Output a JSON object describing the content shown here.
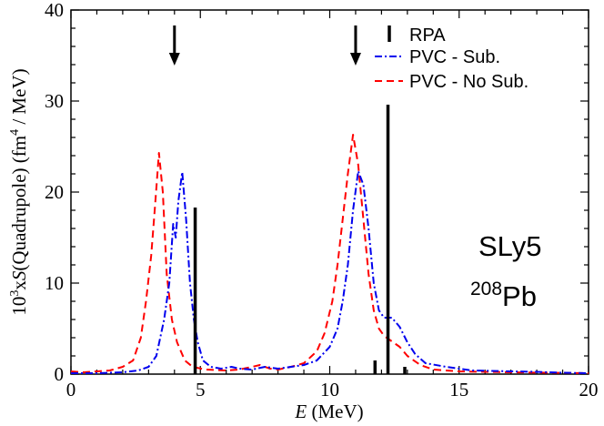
{
  "chart_data": {
    "type": "line",
    "title": "",
    "xlabel_italic": "E",
    "xlabel_unit": " (MeV)",
    "ylabel": {
      "prefix": "10",
      "exp3": "3",
      "mid": "x",
      "italic": "S",
      "rest": "(Quadrupole) (fm",
      "exp4": "4",
      "tail": " / MeV)"
    },
    "xlim": [
      0,
      20
    ],
    "ylim": [
      0,
      40
    ],
    "x_ticks": [
      0,
      5,
      10,
      15,
      20
    ],
    "y_ticks": [
      0,
      10,
      20,
      30,
      40
    ],
    "x_tick_labels": [
      "0",
      "5",
      "10",
      "15",
      "20"
    ],
    "y_tick_labels": [
      "0",
      "10",
      "20",
      "30",
      "40"
    ],
    "x_minor_step": 1,
    "y_minor_step": 2,
    "grid": false,
    "legend_position": "top-right",
    "annotations": {
      "interaction": "SLy5",
      "nucleus_mass": "208",
      "nucleus_symbol": "Pb"
    },
    "arrows_at_x": [
      4.0,
      11.0
    ],
    "rpa": {
      "name": "RPA",
      "color": "#000000",
      "bars": [
        {
          "x": 4.8,
          "y": 18.3
        },
        {
          "x": 11.75,
          "y": 1.5
        },
        {
          "x": 12.25,
          "y": 29.6
        },
        {
          "x": 12.9,
          "y": 0.8
        }
      ]
    },
    "series": [
      {
        "name": "PVC - Sub.",
        "color": "#0000ee",
        "dash": "dash-dot",
        "points": [
          [
            0,
            0.1
          ],
          [
            1,
            0.1
          ],
          [
            2,
            0.2
          ],
          [
            2.6,
            0.4
          ],
          [
            3,
            0.8
          ],
          [
            3.3,
            2
          ],
          [
            3.6,
            6
          ],
          [
            3.8,
            10
          ],
          [
            3.95,
            16.5
          ],
          [
            4.05,
            15
          ],
          [
            4.15,
            19
          ],
          [
            4.3,
            22.2
          ],
          [
            4.45,
            17
          ],
          [
            4.6,
            10
          ],
          [
            4.75,
            6
          ],
          [
            4.9,
            3.5
          ],
          [
            5.1,
            1.5
          ],
          [
            5.4,
            0.8
          ],
          [
            5.8,
            0.6
          ],
          [
            6.2,
            0.8
          ],
          [
            6.5,
            0.6
          ],
          [
            7,
            0.5
          ],
          [
            7.5,
            0.8
          ],
          [
            8,
            0.6
          ],
          [
            8.5,
            0.8
          ],
          [
            9,
            1
          ],
          [
            9.5,
            1.5
          ],
          [
            10,
            3
          ],
          [
            10.3,
            5
          ],
          [
            10.5,
            8
          ],
          [
            10.7,
            12
          ],
          [
            10.9,
            18
          ],
          [
            11.1,
            22.3
          ],
          [
            11.3,
            20.8
          ],
          [
            11.5,
            16
          ],
          [
            11.7,
            10
          ],
          [
            11.9,
            7
          ],
          [
            12.1,
            6.2
          ],
          [
            12.4,
            6.2
          ],
          [
            12.7,
            5.2
          ],
          [
            13,
            3.5
          ],
          [
            13.3,
            2.2
          ],
          [
            13.7,
            1.2
          ],
          [
            14.5,
            0.8
          ],
          [
            15.5,
            0.4
          ],
          [
            17,
            0.3
          ],
          [
            18,
            0.25
          ],
          [
            19,
            0.15
          ],
          [
            20,
            0.1
          ]
        ]
      },
      {
        "name": "PVC - No Sub.",
        "color": "#ff0000",
        "dash": "dashed",
        "points": [
          [
            0,
            0.3
          ],
          [
            0.5,
            0.2
          ],
          [
            1,
            0.3
          ],
          [
            1.5,
            0.4
          ],
          [
            2,
            0.8
          ],
          [
            2.4,
            1.5
          ],
          [
            2.7,
            4
          ],
          [
            2.9,
            8
          ],
          [
            3.1,
            13
          ],
          [
            3.25,
            18.5
          ],
          [
            3.4,
            24.3
          ],
          [
            3.55,
            20
          ],
          [
            3.7,
            11
          ],
          [
            3.9,
            6
          ],
          [
            4.1,
            3.5
          ],
          [
            4.4,
            1.5
          ],
          [
            4.7,
            0.8
          ],
          [
            5.2,
            0.5
          ],
          [
            6,
            0.4
          ],
          [
            6.5,
            0.5
          ],
          [
            7,
            0.8
          ],
          [
            7.3,
            1
          ],
          [
            7.7,
            0.6
          ],
          [
            8,
            0.5
          ],
          [
            8.5,
            0.8
          ],
          [
            9,
            1.2
          ],
          [
            9.5,
            2.5
          ],
          [
            9.8,
            4.5
          ],
          [
            10.1,
            8
          ],
          [
            10.3,
            12
          ],
          [
            10.5,
            17
          ],
          [
            10.7,
            22
          ],
          [
            10.9,
            26.3
          ],
          [
            11.1,
            23
          ],
          [
            11.3,
            17
          ],
          [
            11.5,
            11
          ],
          [
            11.7,
            7
          ],
          [
            11.9,
            5
          ],
          [
            12.1,
            4.2
          ],
          [
            12.4,
            3.6
          ],
          [
            12.7,
            3
          ],
          [
            13,
            2
          ],
          [
            13.5,
            1
          ],
          [
            14,
            0.5
          ],
          [
            15,
            0.3
          ],
          [
            16,
            0.25
          ],
          [
            17,
            0.2
          ],
          [
            18.5,
            0.15
          ],
          [
            20,
            0.1
          ]
        ]
      }
    ]
  }
}
